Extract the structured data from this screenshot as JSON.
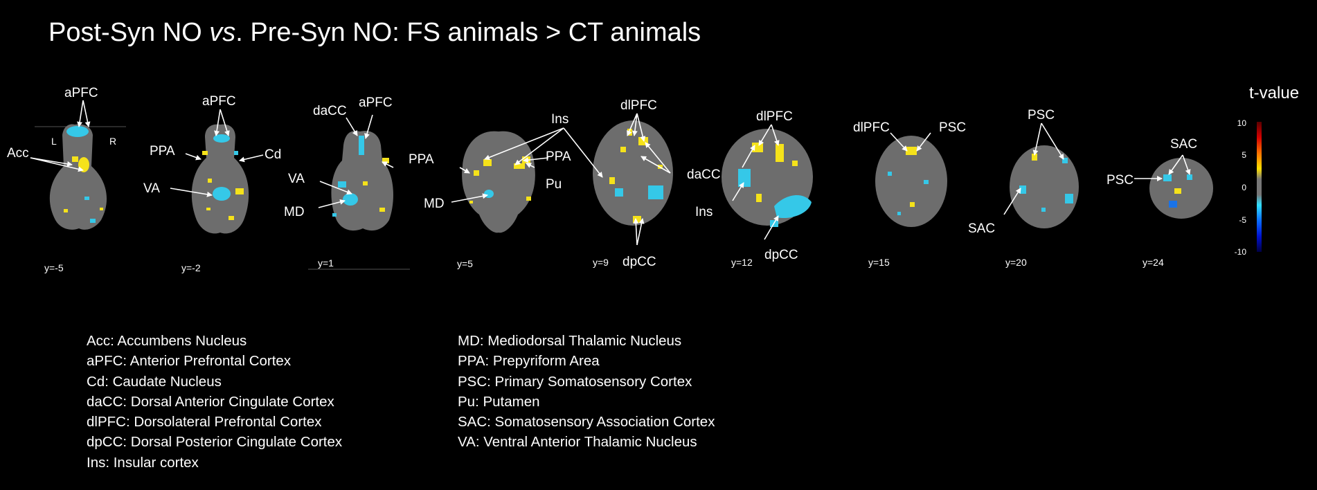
{
  "title": {
    "part1": "Post-Syn NO ",
    "italic": "vs",
    "part2": ". Pre-Syn NO: FS animals > CT animals"
  },
  "colorbar": {
    "label": "t-value",
    "ticks": [
      "10",
      "5",
      "0",
      "-5",
      "-10"
    ]
  },
  "orientation": {
    "left": "L",
    "right": "R"
  },
  "slices": [
    {
      "coord": "y=-5",
      "labels": [
        "aPFC",
        "Acc"
      ]
    },
    {
      "coord": "y=-2",
      "labels": [
        "aPFC",
        "PPA",
        "Cd",
        "VA"
      ]
    },
    {
      "coord": "y=1",
      "labels": [
        "daCC",
        "aPFC",
        "VA",
        "MD"
      ]
    },
    {
      "coord": "y=5",
      "labels": [
        "Ins",
        "PPA",
        "PPA",
        "Pu",
        "MD"
      ]
    },
    {
      "coord": "y=9",
      "labels": [
        "dlPFC",
        "dpCC"
      ]
    },
    {
      "coord": "y=12",
      "labels": [
        "dlPFC",
        "daCC",
        "Ins",
        "dpCC"
      ]
    },
    {
      "coord": "y=15",
      "labels": [
        "dlPFC",
        "PSC"
      ]
    },
    {
      "coord": "y=20",
      "labels": [
        "PSC",
        "SAC"
      ]
    },
    {
      "coord": "y=24",
      "labels": [
        "SAC",
        "PSC"
      ]
    }
  ],
  "legend": {
    "left": [
      "Acc: Accumbens Nucleus",
      "aPFC: Anterior Prefrontal Cortex",
      "Cd: Caudate Nucleus",
      "daCC: Dorsal Anterior Cingulate Cortex",
      "dlPFC: Dorsolateral Prefrontal Cortex",
      "dpCC: Dorsal Posterior Cingulate Cortex",
      "Ins: Insular cortex"
    ],
    "right": [
      "MD: Mediodorsal Thalamic Nucleus",
      "PPA: Prepyriform Area",
      "PSC: Primary Somatosensory Cortex",
      "Pu: Putamen",
      "SAC: Somatosensory Association Cortex",
      "VA: Ventral Anterior Thalamic Nucleus"
    ]
  },
  "colors": {
    "background": "#000000",
    "brain_tissue": "#6d6d6d",
    "activation_positive": "#f5e21a",
    "activation_negative": "#35c8e8"
  }
}
